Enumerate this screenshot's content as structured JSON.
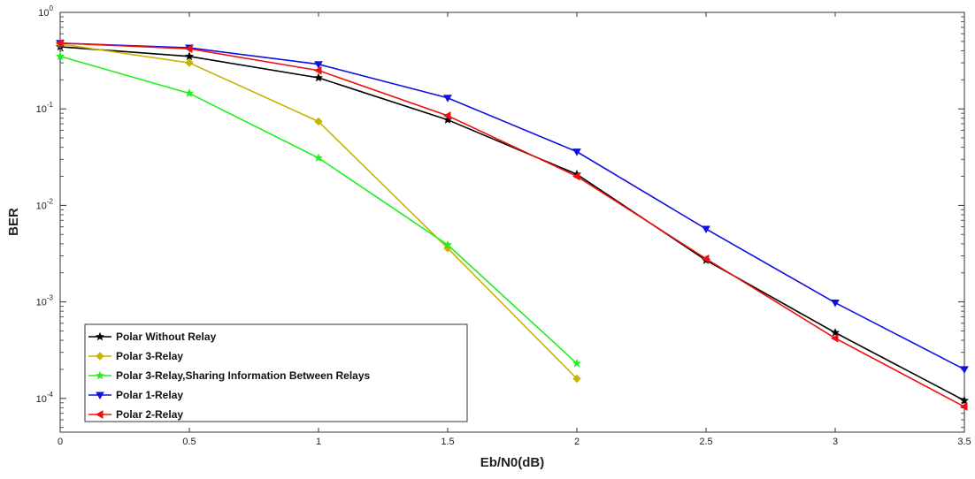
{
  "chart_data": {
    "type": "line",
    "title": "",
    "xlabel": "Eb/N0(dB)",
    "ylabel": "BER",
    "yscale": "log",
    "xlim": [
      0,
      3.5
    ],
    "ylim_exponent": [
      -4.35,
      0
    ],
    "x_ticks": [
      "0",
      "0.5",
      "1",
      "1.5",
      "2",
      "2.5",
      "3",
      "3.5"
    ],
    "y_ticks": [
      {
        "base": "10",
        "exp": "0"
      },
      {
        "base": "10",
        "exp": "-1"
      },
      {
        "base": "10",
        "exp": "-2"
      },
      {
        "base": "10",
        "exp": "-3"
      },
      {
        "base": "10",
        "exp": "-4"
      }
    ],
    "grid": false,
    "legend_position": "bottom-left",
    "series": [
      {
        "name": "Polar Without Relay",
        "color": "#000000",
        "marker": "star",
        "x": [
          0,
          0.5,
          1,
          1.5,
          2,
          2.5,
          3,
          3.5
        ],
        "y": [
          0.44,
          0.35,
          0.21,
          0.077,
          0.021,
          0.0027,
          0.00048,
          9.5e-05
        ]
      },
      {
        "name": "Polar 3-Relay",
        "color": "#c8b400",
        "marker": "diamond",
        "x": [
          0,
          0.5,
          1,
          1.5,
          2
        ],
        "y": [
          0.47,
          0.3,
          0.074,
          0.0036,
          0.00016
        ]
      },
      {
        "name": "Polar 3-Relay,Sharing Information Between Relays",
        "color": "#22ee22",
        "marker": "star",
        "x": [
          0,
          0.5,
          1,
          1.5,
          2
        ],
        "y": [
          0.35,
          0.145,
          0.031,
          0.0039,
          0.00023
        ]
      },
      {
        "name": "Polar 1-Relay",
        "color": "#1010e0",
        "marker": "triangle-down",
        "x": [
          0,
          0.5,
          1,
          1.5,
          2,
          2.5,
          3,
          3.5
        ],
        "y": [
          0.48,
          0.43,
          0.29,
          0.13,
          0.036,
          0.0057,
          0.00098,
          0.0002
        ]
      },
      {
        "name": "Polar 2-Relay",
        "color": "#ee1010",
        "marker": "triangle-left",
        "x": [
          0,
          0.5,
          1,
          1.5,
          2,
          2.5,
          3,
          3.5
        ],
        "y": [
          0.48,
          0.42,
          0.25,
          0.085,
          0.02,
          0.0028,
          0.00042,
          8.2e-05
        ]
      }
    ]
  }
}
